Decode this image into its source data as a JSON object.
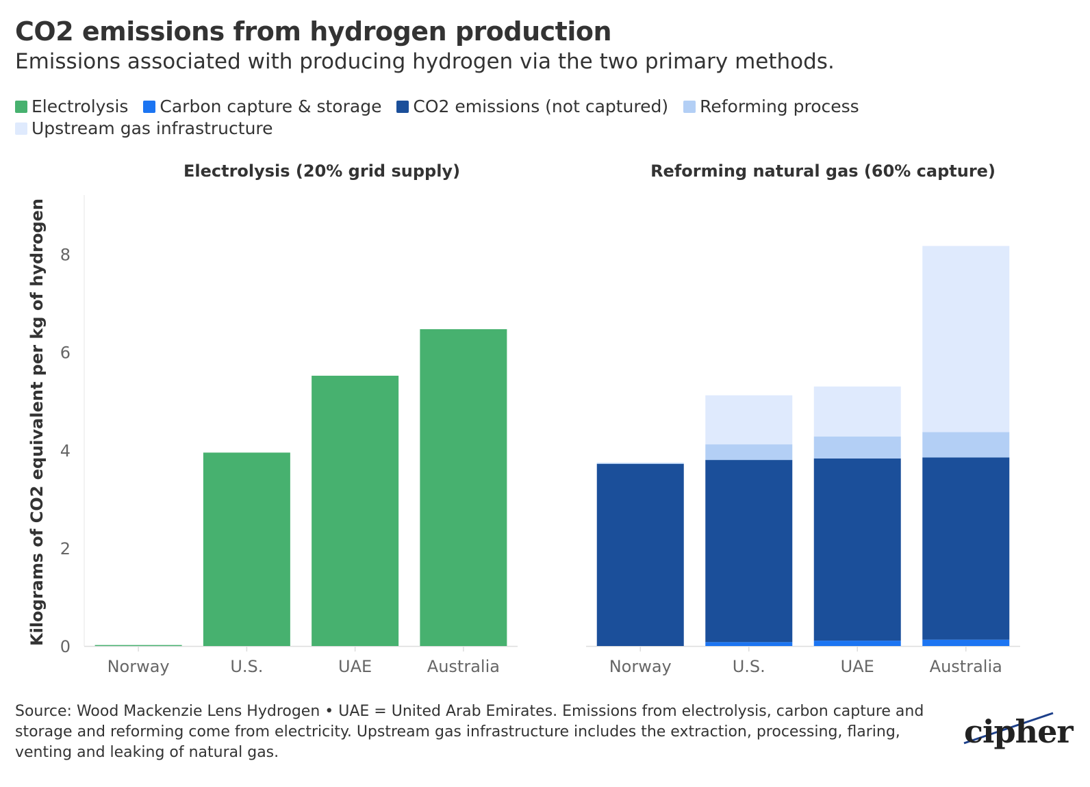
{
  "header": {
    "title": "CO2 emissions from hydrogen production",
    "subtitle": "Emissions associated with producing hydrogen via the two primary methods."
  },
  "legend": [
    {
      "label": "Electrolysis",
      "color": "#47b16f"
    },
    {
      "label": "Carbon capture & storage",
      "color": "#1c75f2"
    },
    {
      "label": "CO2 emissions (not captured)",
      "color": "#1b4f9a"
    },
    {
      "label": "Reforming process",
      "color": "#b3cff5"
    },
    {
      "label": "Upstream gas infrastructure",
      "color": "#dfeafd"
    }
  ],
  "chart_data": [
    {
      "type": "bar",
      "title": "Electrolysis (20% grid supply)",
      "ylabel": "Kilograms of CO2 equivalent per kg of hydrogen",
      "ylim": [
        0,
        9
      ],
      "yticks": [
        "0",
        "2",
        "4",
        "6",
        "8"
      ],
      "categories": [
        "Norway",
        "U.S.",
        "UAE",
        "Australia"
      ],
      "series": [
        {
          "name": "Electrolysis",
          "color": "#47b16f",
          "values": [
            0.02,
            3.95,
            5.52,
            6.47
          ]
        }
      ]
    },
    {
      "type": "bar",
      "stacked": true,
      "title": "Reforming natural gas (60% capture)",
      "ylim": [
        0,
        9
      ],
      "categories": [
        "Norway",
        "U.S.",
        "UAE",
        "Australia"
      ],
      "series": [
        {
          "name": "Carbon capture & storage",
          "color": "#1c75f2",
          "values": [
            0.0,
            0.08,
            0.11,
            0.13
          ]
        },
        {
          "name": "CO2 emissions (not captured)",
          "color": "#1b4f9a",
          "values": [
            3.72,
            3.72,
            3.72,
            3.72
          ]
        },
        {
          "name": "Reforming process",
          "color": "#b3cff5",
          "values": [
            0.02,
            0.32,
            0.45,
            0.52
          ]
        },
        {
          "name": "Upstream gas infrastructure",
          "color": "#dfeafd",
          "values": [
            0.0,
            1.0,
            1.02,
            3.8
          ]
        }
      ]
    }
  ],
  "footer": {
    "source": "Source: Wood Mackenzie Lens Hydrogen • UAE = United Arab Emirates. Emissions from electrolysis, carbon capture and storage and reforming come from electricity. Upstream gas infrastructure includes the extraction, processing, flaring, venting and leaking of natural gas."
  },
  "logo": {
    "text": "cipher"
  }
}
